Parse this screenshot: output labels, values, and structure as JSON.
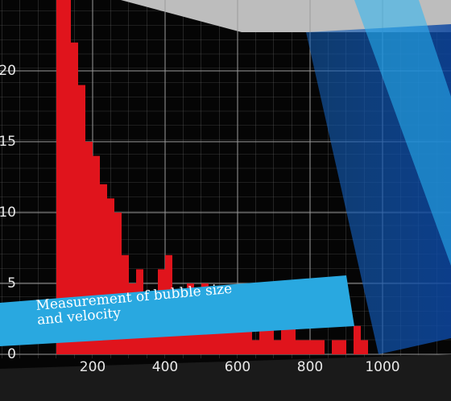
{
  "chart_data": {
    "type": "histogram",
    "caption": [
      "Measurement of bubble size",
      "and velocity"
    ],
    "bins": [
      100,
      120,
      140,
      160,
      180,
      200,
      220,
      240,
      260,
      280,
      300,
      320,
      340,
      360,
      380,
      400,
      420,
      440,
      460,
      480,
      500,
      520,
      540,
      560,
      580,
      600,
      620,
      640,
      660,
      680,
      700,
      720,
      740,
      760,
      780,
      800,
      820,
      840,
      860,
      880,
      900,
      920,
      940,
      960,
      980,
      1000
    ],
    "values": [
      25,
      25,
      22,
      19,
      15,
      14,
      12,
      11,
      10,
      7,
      5,
      6,
      4,
      3,
      6,
      7,
      4,
      3,
      5,
      2,
      5,
      4,
      3,
      2,
      4,
      3,
      2,
      1,
      2,
      2,
      1,
      3,
      3,
      1,
      1,
      1,
      1,
      0,
      1,
      1,
      0,
      2,
      1,
      0,
      0
    ],
    "color": "#e0141c",
    "xlim": [
      0,
      1200
    ],
    "ylim": [
      0,
      25
    ],
    "xticks": [
      200,
      400,
      600,
      800,
      1000
    ],
    "yticks": [
      0,
      5,
      10,
      15,
      20
    ],
    "grid": true
  }
}
